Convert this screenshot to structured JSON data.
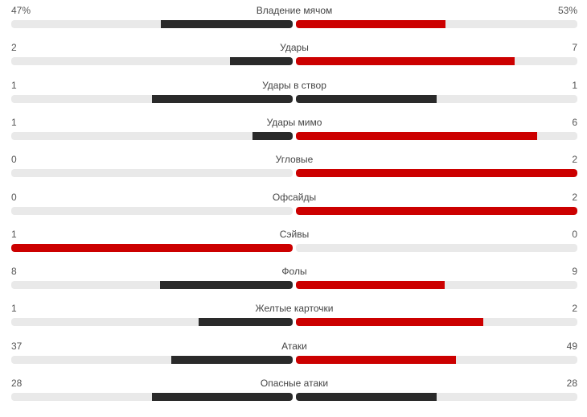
{
  "colors": {
    "track": "#e9e9e9",
    "leader": "#cc0000",
    "trailer": "#2a2a2a",
    "text": "#555555"
  },
  "stats": [
    {
      "label": "Владение мячом",
      "home": "47%",
      "away": "53%",
      "home_value": 47,
      "away_value": 53
    },
    {
      "label": "Удары",
      "home": "2",
      "away": "7",
      "home_value": 2,
      "away_value": 7
    },
    {
      "label": "Удары в створ",
      "home": "1",
      "away": "1",
      "home_value": 1,
      "away_value": 1
    },
    {
      "label": "Удары мимо",
      "home": "1",
      "away": "6",
      "home_value": 1,
      "away_value": 6
    },
    {
      "label": "Угловые",
      "home": "0",
      "away": "2",
      "home_value": 0,
      "away_value": 2
    },
    {
      "label": "Офсайды",
      "home": "0",
      "away": "2",
      "home_value": 0,
      "away_value": 2
    },
    {
      "label": "Сэйвы",
      "home": "1",
      "away": "0",
      "home_value": 1,
      "away_value": 0
    },
    {
      "label": "Фолы",
      "home": "8",
      "away": "9",
      "home_value": 8,
      "away_value": 9
    },
    {
      "label": "Желтые карточки",
      "home": "1",
      "away": "2",
      "home_value": 1,
      "away_value": 2
    },
    {
      "label": "Атаки",
      "home": "37",
      "away": "49",
      "home_value": 37,
      "away_value": 49
    },
    {
      "label": "Опасные атаки",
      "home": "28",
      "away": "28",
      "home_value": 28,
      "away_value": 28
    }
  ]
}
